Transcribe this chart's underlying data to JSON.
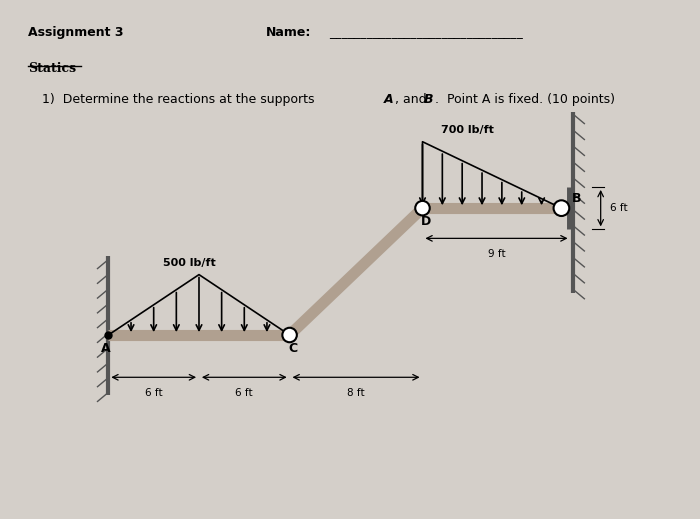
{
  "bg_color": "#d4cfc9",
  "title_left": "Assignment 3",
  "title_right": "Name:",
  "subtitle": "Statics",
  "problem": "1)  Determine the reactions at the supports ",
  "problem2": ", and ",
  "problem3": ".  Point A is fixed. (10 points)",
  "italic_A": "A",
  "italic_B": "B",
  "load1_label": "500 lb/ft",
  "load2_label": "700 lb/ft",
  "dim1": "−6 ft──+−6 ft──+─–8 ft—",
  "dim2": "−9 ft—",
  "dim3": "6 ft",
  "label_A": "A",
  "label_B": "B",
  "label_C": "C",
  "label_D": "D"
}
